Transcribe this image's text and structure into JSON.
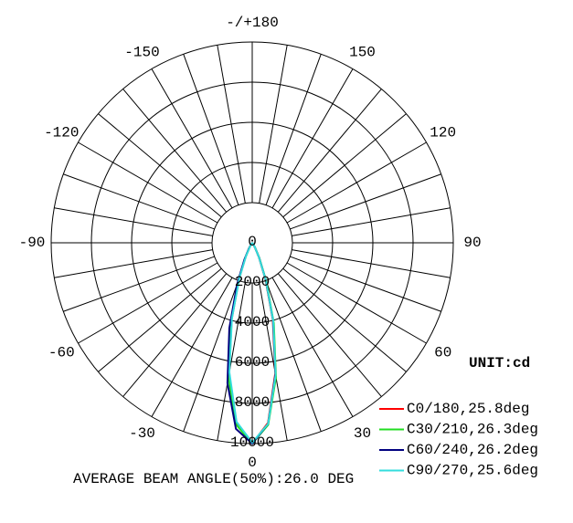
{
  "chart_data": {
    "type": "polar",
    "angles": [
      -60,
      -55,
      -50,
      -45,
      -40,
      -35,
      -30,
      -25,
      -20,
      -15,
      -10,
      -5,
      0,
      5,
      10,
      15,
      20,
      25,
      30,
      35,
      40,
      45,
      50,
      55,
      60
    ],
    "angle_ticks": [
      {
        "value": 180,
        "label": "-/+180"
      },
      150,
      120,
      90,
      60,
      30,
      0,
      -30,
      -60,
      -90,
      -120,
      -150
    ],
    "rlim": [
      0,
      10000
    ],
    "rticks": [
      0,
      2000,
      4000,
      6000,
      8000,
      10000
    ],
    "unit": "UNIT:cd",
    "series": [
      {
        "name": "C0/180,25.8deg",
        "color": "#ff0000",
        "values": [
          0,
          0,
          0,
          0,
          10,
          60,
          250,
          760,
          1900,
          3950,
          6600,
          9000,
          10000,
          9000,
          6600,
          3950,
          1900,
          760,
          250,
          60,
          10,
          0,
          0,
          0,
          0
        ]
      },
      {
        "name": "C30/210,26.3deg",
        "color": "#22dd22",
        "values": [
          0,
          0,
          0,
          0,
          20,
          80,
          300,
          850,
          2050,
          4150,
          6800,
          9100,
          10000,
          9100,
          6800,
          4150,
          2050,
          850,
          300,
          80,
          20,
          0,
          0,
          0,
          0
        ]
      },
      {
        "name": "C60/240,26.2deg",
        "color": "#000080",
        "values": [
          0,
          0,
          0,
          0,
          20,
          90,
          330,
          920,
          2200,
          4400,
          7100,
          9300,
          10000,
          9050,
          6650,
          4000,
          1950,
          800,
          270,
          70,
          15,
          0,
          0,
          0,
          0
        ]
      },
      {
        "name": "C90/270,25.6deg",
        "color": "#33dddd",
        "values": [
          0,
          0,
          0,
          0,
          10,
          50,
          230,
          730,
          1850,
          3900,
          6550,
          8950,
          9950,
          9050,
          6700,
          4050,
          1950,
          770,
          250,
          60,
          10,
          0,
          0,
          0,
          0
        ]
      }
    ],
    "footer": "AVERAGE BEAM ANGLE(50%):26.0 DEG"
  }
}
